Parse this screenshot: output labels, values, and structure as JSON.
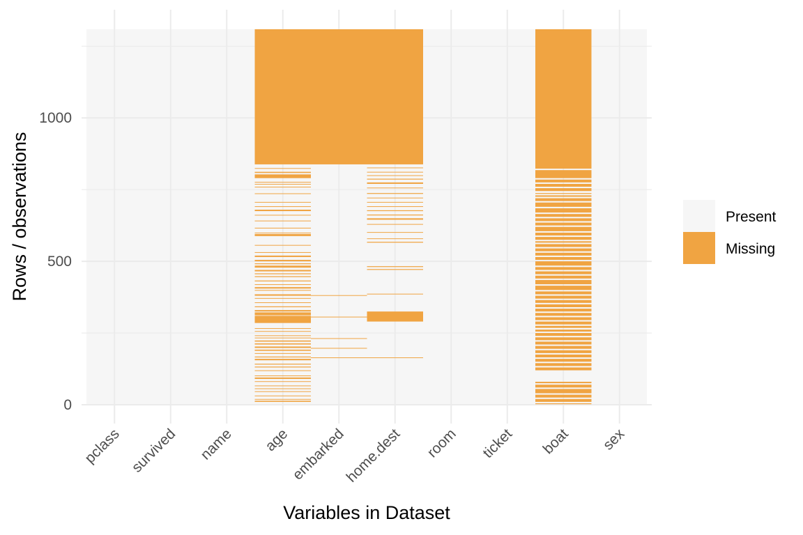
{
  "chart_data": {
    "type": "heatmap",
    "title": "",
    "xlabel": "Variables in Dataset",
    "ylabel": "Rows / observations",
    "ylim": [
      0,
      1309
    ],
    "yticks": [
      0,
      500,
      1000
    ],
    "n_rows": 1309,
    "colors": {
      "present": "#f6f6f6",
      "missing": "#f0a442",
      "grid": "#ebebeb"
    },
    "legend": {
      "position": "right",
      "entries": [
        {
          "label": "Present",
          "color": "#f6f6f6"
        },
        {
          "label": "Missing",
          "color": "#f0a442"
        }
      ]
    },
    "variables": [
      {
        "name": "pclass",
        "missing": []
      },
      {
        "name": "survived",
        "missing": []
      },
      {
        "name": "name",
        "missing": []
      },
      {
        "name": "age",
        "missing": [
          [
            838,
            1309
          ],
          [
            823,
            825
          ],
          [
            808,
            812
          ],
          [
            790,
            803
          ],
          [
            775,
            777
          ],
          [
            768,
            770
          ],
          [
            758,
            760
          ],
          [
            735,
            737
          ],
          [
            705,
            707
          ],
          [
            690,
            692
          ],
          [
            675,
            680
          ],
          [
            660,
            662
          ],
          [
            640,
            642
          ],
          [
            615,
            617
          ],
          [
            598,
            600
          ],
          [
            588,
            595
          ],
          [
            555,
            557
          ],
          [
            530,
            532
          ],
          [
            515,
            520
          ],
          [
            500,
            505
          ],
          [
            490,
            493
          ],
          [
            478,
            485
          ],
          [
            465,
            470
          ],
          [
            455,
            458
          ],
          [
            445,
            448
          ],
          [
            430,
            433
          ],
          [
            418,
            420
          ],
          [
            405,
            410
          ],
          [
            398,
            400
          ],
          [
            380,
            385
          ],
          [
            370,
            372
          ],
          [
            355,
            357
          ],
          [
            340,
            343
          ],
          [
            325,
            330
          ],
          [
            312,
            322
          ],
          [
            285,
            310
          ],
          [
            265,
            267
          ],
          [
            255,
            257
          ],
          [
            240,
            242
          ],
          [
            232,
            234
          ],
          [
            220,
            224
          ],
          [
            210,
            214
          ],
          [
            198,
            203
          ],
          [
            188,
            192
          ],
          [
            178,
            180
          ],
          [
            165,
            168
          ],
          [
            155,
            160
          ],
          [
            140,
            143
          ],
          [
            130,
            133
          ],
          [
            118,
            120
          ],
          [
            100,
            102
          ],
          [
            90,
            95
          ],
          [
            80,
            82
          ],
          [
            65,
            67
          ],
          [
            55,
            57
          ],
          [
            45,
            47
          ],
          [
            30,
            32
          ],
          [
            18,
            20
          ],
          [
            10,
            14
          ]
        ]
      },
      {
        "name": "embarked",
        "missing": [
          [
            838,
            1309
          ],
          [
            380,
            382
          ],
          [
            305,
            307
          ],
          [
            230,
            232
          ],
          [
            196,
            198
          ],
          [
            163,
            165
          ]
        ]
      },
      {
        "name": "home.dest",
        "missing": [
          [
            838,
            1309
          ],
          [
            825,
            827
          ],
          [
            810,
            812
          ],
          [
            798,
            800
          ],
          [
            785,
            788
          ],
          [
            770,
            775
          ],
          [
            755,
            757
          ],
          [
            735,
            738
          ],
          [
            720,
            722
          ],
          [
            705,
            707
          ],
          [
            690,
            692
          ],
          [
            675,
            678
          ],
          [
            660,
            663
          ],
          [
            645,
            650
          ],
          [
            628,
            630
          ],
          [
            600,
            602
          ],
          [
            578,
            580
          ],
          [
            565,
            568
          ],
          [
            480,
            483
          ],
          [
            470,
            473
          ],
          [
            385,
            387
          ],
          [
            290,
            325
          ],
          [
            163,
            165
          ]
        ]
      },
      {
        "name": "room",
        "missing": []
      },
      {
        "name": "ticket",
        "missing": []
      },
      {
        "name": "boat",
        "missing": [
          [
            823,
            1309
          ],
          [
            790,
            818
          ],
          [
            775,
            785
          ],
          [
            760,
            770
          ],
          [
            745,
            755
          ],
          [
            735,
            738
          ],
          [
            725,
            730
          ],
          [
            710,
            720
          ],
          [
            690,
            705
          ],
          [
            670,
            685
          ],
          [
            655,
            665
          ],
          [
            640,
            650
          ],
          [
            625,
            635
          ],
          [
            605,
            620
          ],
          [
            590,
            600
          ],
          [
            575,
            585
          ],
          [
            565,
            570
          ],
          [
            550,
            560
          ],
          [
            535,
            545
          ],
          [
            520,
            530
          ],
          [
            505,
            515
          ],
          [
            485,
            500
          ],
          [
            470,
            480
          ],
          [
            455,
            465
          ],
          [
            440,
            450
          ],
          [
            420,
            435
          ],
          [
            400,
            415
          ],
          [
            385,
            395
          ],
          [
            370,
            380
          ],
          [
            355,
            365
          ],
          [
            340,
            350
          ],
          [
            325,
            335
          ],
          [
            310,
            320
          ],
          [
            295,
            305
          ],
          [
            280,
            290
          ],
          [
            268,
            275
          ],
          [
            255,
            262
          ],
          [
            240,
            250
          ],
          [
            225,
            235
          ],
          [
            210,
            220
          ],
          [
            195,
            205
          ],
          [
            180,
            190
          ],
          [
            165,
            175
          ],
          [
            150,
            160
          ],
          [
            135,
            145
          ],
          [
            120,
            130
          ],
          [
            75,
            80
          ],
          [
            60,
            70
          ],
          [
            40,
            55
          ],
          [
            25,
            35
          ],
          [
            10,
            20
          ],
          [
            2,
            5
          ]
        ]
      },
      {
        "name": "sex",
        "missing": []
      }
    ]
  }
}
